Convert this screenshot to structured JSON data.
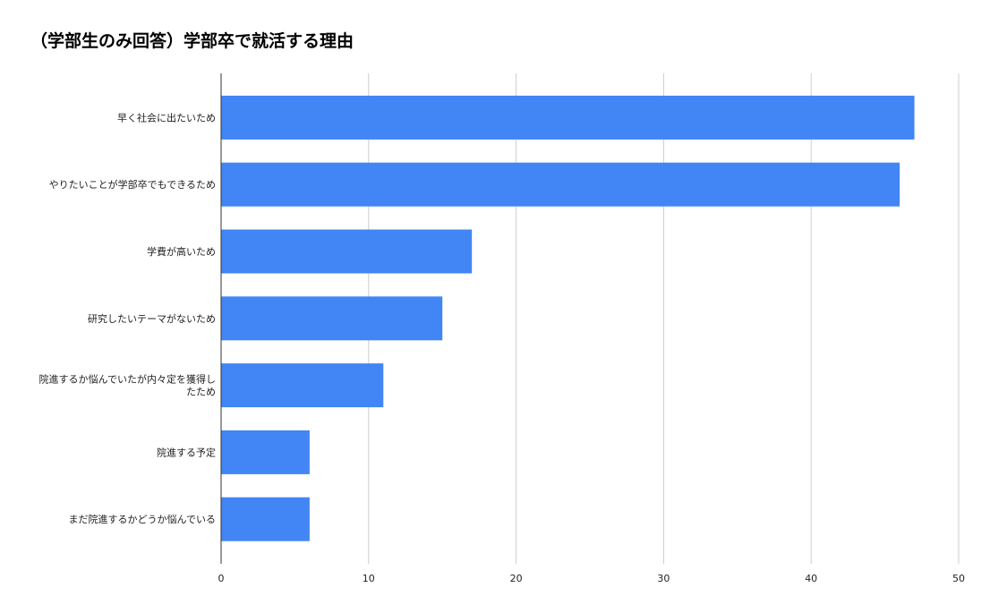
{
  "chart_data": {
    "type": "bar",
    "orientation": "horizontal",
    "title": "（学部生のみ回答）学部卒で就活する理由",
    "xlabel": "",
    "ylabel": "",
    "categories": [
      "早く社会に出たいため",
      "やりたいことが学部卒でもできるため",
      "学費が高いため",
      "研究したいテーマがないため",
      "院進するか悩んでいたが内々定を獲得したため",
      "院進する予定",
      "まだ院進するかどうか悩んでいる"
    ],
    "category_label_lines": [
      [
        "早く社会に出たいため"
      ],
      [
        "やりたいことが学部卒でもできるため"
      ],
      [
        "学費が高いため"
      ],
      [
        "研究したいテーマがないため"
      ],
      [
        "院進するか悩んでいたが内々定を獲得し",
        "たため"
      ],
      [
        "院進する予定"
      ],
      [
        "まだ院進するかどうか悩んでいる"
      ]
    ],
    "values": [
      47,
      46,
      17,
      15,
      11,
      6,
      6
    ],
    "xlim": [
      0,
      50
    ],
    "ticks": [
      0,
      10,
      20,
      30,
      40,
      50
    ],
    "grid": true,
    "legend": "none",
    "bar_color": "#4285F4",
    "grid_color": "#cccccc",
    "axis_color": "#333333"
  }
}
